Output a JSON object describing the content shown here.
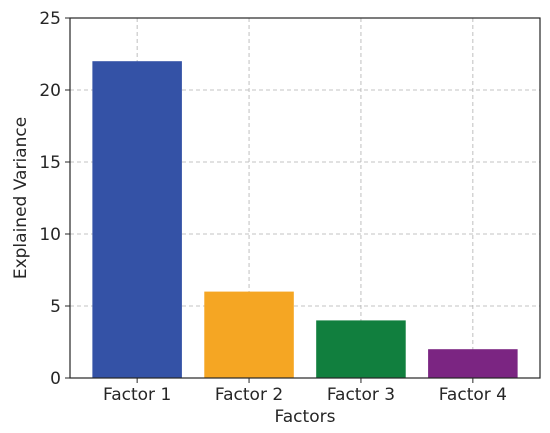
{
  "chart_data": {
    "type": "bar",
    "title": "",
    "xlabel": "Factors",
    "ylabel": "Explained Variance",
    "categories": [
      "Factor 1",
      "Factor 2",
      "Factor 3",
      "Factor 4"
    ],
    "values": [
      22,
      6,
      4,
      2
    ],
    "colors": [
      "#3452a6",
      "#f5a623",
      "#117f3e",
      "#7b2582"
    ],
    "ylim": [
      0,
      25
    ],
    "yticks": [
      0,
      5,
      10,
      15,
      20,
      25
    ],
    "grid": true
  }
}
